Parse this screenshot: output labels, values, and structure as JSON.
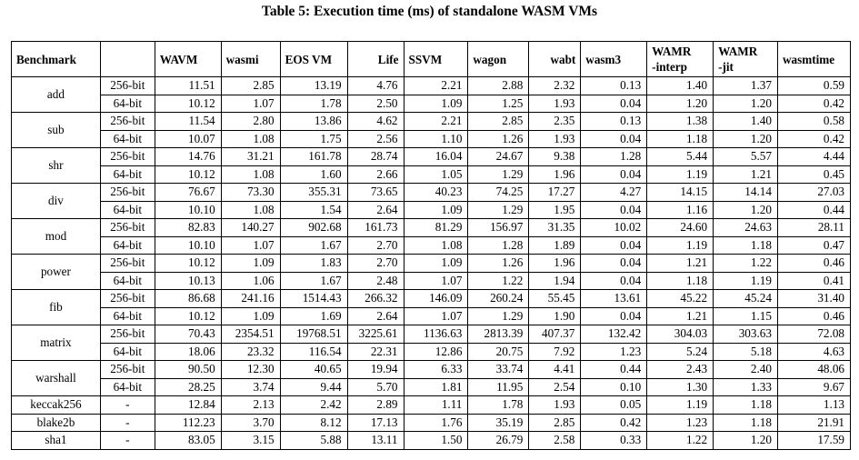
{
  "caption": "Table 5: Execution time (ms) of standalone WASM VMs",
  "header": {
    "benchmark": "Benchmark",
    "config": "",
    "columns": [
      "WAVM",
      "wasmi",
      "EOS VM",
      "Life",
      "SSVM",
      "wagon",
      "wabt",
      "wasm3",
      "WAMR\n-interp",
      "WAMR\n-jit",
      "wasmtime"
    ]
  },
  "groups": [
    {
      "name": "add",
      "rows": [
        {
          "config": "256-bit",
          "values": [
            "11.51",
            "2.85",
            "13.19",
            "4.76",
            "2.21",
            "2.88",
            "2.32",
            "0.13",
            "1.40",
            "1.37",
            "0.59"
          ]
        },
        {
          "config": "64-bit",
          "values": [
            "10.12",
            "1.07",
            "1.78",
            "2.50",
            "1.09",
            "1.25",
            "1.93",
            "0.04",
            "1.20",
            "1.20",
            "0.42"
          ]
        }
      ]
    },
    {
      "name": "sub",
      "rows": [
        {
          "config": "256-bit",
          "values": [
            "11.54",
            "2.80",
            "13.86",
            "4.62",
            "2.21",
            "2.85",
            "2.35",
            "0.13",
            "1.38",
            "1.40",
            "0.58"
          ]
        },
        {
          "config": "64-bit",
          "values": [
            "10.07",
            "1.08",
            "1.75",
            "2.56",
            "1.10",
            "1.26",
            "1.93",
            "0.04",
            "1.18",
            "1.20",
            "0.42"
          ]
        }
      ]
    },
    {
      "name": "shr",
      "rows": [
        {
          "config": "256-bit",
          "values": [
            "14.76",
            "31.21",
            "161.78",
            "28.74",
            "16.04",
            "24.67",
            "9.38",
            "1.28",
            "5.44",
            "5.57",
            "4.44"
          ]
        },
        {
          "config": "64-bit",
          "values": [
            "10.12",
            "1.08",
            "1.60",
            "2.66",
            "1.05",
            "1.29",
            "1.96",
            "0.04",
            "1.19",
            "1.21",
            "0.45"
          ]
        }
      ]
    },
    {
      "name": "div",
      "rows": [
        {
          "config": "256-bit",
          "values": [
            "76.67",
            "73.30",
            "355.31",
            "73.65",
            "40.23",
            "74.25",
            "17.27",
            "4.27",
            "14.15",
            "14.14",
            "27.03"
          ]
        },
        {
          "config": "64-bit",
          "values": [
            "10.10",
            "1.08",
            "1.54",
            "2.64",
            "1.09",
            "1.29",
            "1.95",
            "0.04",
            "1.16",
            "1.20",
            "0.44"
          ]
        }
      ]
    },
    {
      "name": "mod",
      "rows": [
        {
          "config": "256-bit",
          "values": [
            "82.83",
            "140.27",
            "902.68",
            "161.73",
            "81.29",
            "156.97",
            "31.35",
            "10.02",
            "24.60",
            "24.63",
            "28.11"
          ]
        },
        {
          "config": "64-bit",
          "values": [
            "10.10",
            "1.07",
            "1.67",
            "2.70",
            "1.08",
            "1.28",
            "1.89",
            "0.04",
            "1.19",
            "1.18",
            "0.47"
          ]
        }
      ]
    },
    {
      "name": "power",
      "rows": [
        {
          "config": "256-bit",
          "values": [
            "10.12",
            "1.09",
            "1.83",
            "2.70",
            "1.09",
            "1.26",
            "1.96",
            "0.04",
            "1.21",
            "1.22",
            "0.46"
          ]
        },
        {
          "config": "64-bit",
          "values": [
            "10.13",
            "1.06",
            "1.67",
            "2.48",
            "1.07",
            "1.22",
            "1.94",
            "0.04",
            "1.18",
            "1.19",
            "0.41"
          ]
        }
      ]
    },
    {
      "name": "fib",
      "rows": [
        {
          "config": "256-bit",
          "values": [
            "86.68",
            "241.16",
            "1514.43",
            "266.32",
            "146.09",
            "260.24",
            "55.45",
            "13.61",
            "45.22",
            "45.24",
            "31.40"
          ]
        },
        {
          "config": "64-bit",
          "values": [
            "10.12",
            "1.09",
            "1.69",
            "2.64",
            "1.07",
            "1.29",
            "1.90",
            "0.04",
            "1.21",
            "1.15",
            "0.46"
          ]
        }
      ]
    },
    {
      "name": "matrix",
      "rows": [
        {
          "config": "256-bit",
          "values": [
            "70.43",
            "2354.51",
            "19768.51",
            "3225.61",
            "1136.63",
            "2813.39",
            "407.37",
            "132.42",
            "304.03",
            "303.63",
            "72.08"
          ]
        },
        {
          "config": "64-bit",
          "values": [
            "18.06",
            "23.32",
            "116.54",
            "22.31",
            "12.86",
            "20.75",
            "7.92",
            "1.23",
            "5.24",
            "5.18",
            "4.63"
          ]
        }
      ]
    },
    {
      "name": "warshall",
      "rows": [
        {
          "config": "256-bit",
          "values": [
            "90.50",
            "12.30",
            "40.65",
            "19.94",
            "6.33",
            "33.74",
            "4.41",
            "0.44",
            "2.43",
            "2.40",
            "48.06"
          ]
        },
        {
          "config": "64-bit",
          "values": [
            "28.25",
            "3.74",
            "9.44",
            "5.70",
            "1.81",
            "11.95",
            "2.54",
            "0.10",
            "1.30",
            "1.33",
            "9.67"
          ]
        }
      ]
    },
    {
      "name": "keccak256",
      "rows": [
        {
          "config": "-",
          "values": [
            "12.84",
            "2.13",
            "2.42",
            "2.89",
            "1.11",
            "1.78",
            "1.93",
            "0.05",
            "1.19",
            "1.18",
            "1.13"
          ]
        }
      ]
    },
    {
      "name": "blake2b",
      "rows": [
        {
          "config": "-",
          "values": [
            "112.23",
            "3.70",
            "8.12",
            "17.13",
            "1.76",
            "35.19",
            "2.85",
            "0.42",
            "1.23",
            "1.18",
            "21.91"
          ]
        }
      ]
    },
    {
      "name": "sha1",
      "rows": [
        {
          "config": "-",
          "values": [
            "83.05",
            "3.15",
            "5.88",
            "13.11",
            "1.50",
            "26.79",
            "2.58",
            "0.33",
            "1.22",
            "1.20",
            "17.59"
          ]
        }
      ]
    }
  ]
}
